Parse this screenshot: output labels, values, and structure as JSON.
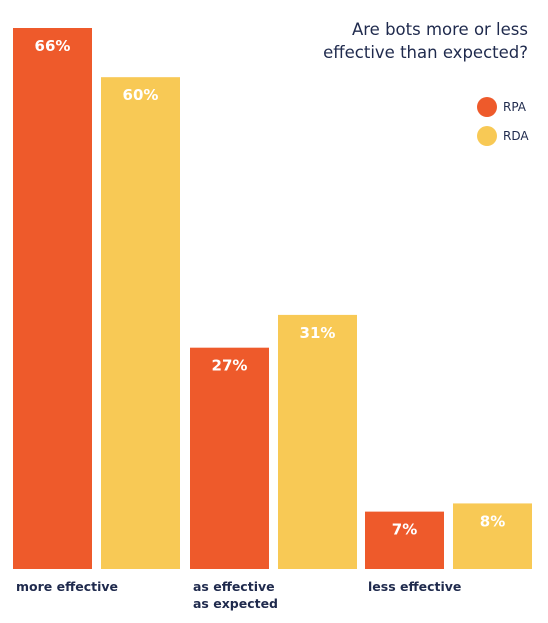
{
  "chart_data": {
    "type": "bar",
    "title_lines": [
      "Are bots more or less",
      "effective than expected?"
    ],
    "categories": [
      [
        "more effective"
      ],
      [
        "as effective",
        "as expected"
      ],
      [
        "less effective"
      ]
    ],
    "series": [
      {
        "name": "RPA",
        "color": "#ee5a2b",
        "values": [
          66,
          27,
          7
        ],
        "labels": [
          "66%",
          "27%",
          "7%"
        ]
      },
      {
        "name": "RDA",
        "color": "#f8c955",
        "values": [
          60,
          31,
          8
        ],
        "labels": [
          "60%",
          "31%",
          "8%"
        ]
      }
    ],
    "ylim": [
      0,
      66
    ],
    "legend_position": "top-right",
    "grid": false
  }
}
